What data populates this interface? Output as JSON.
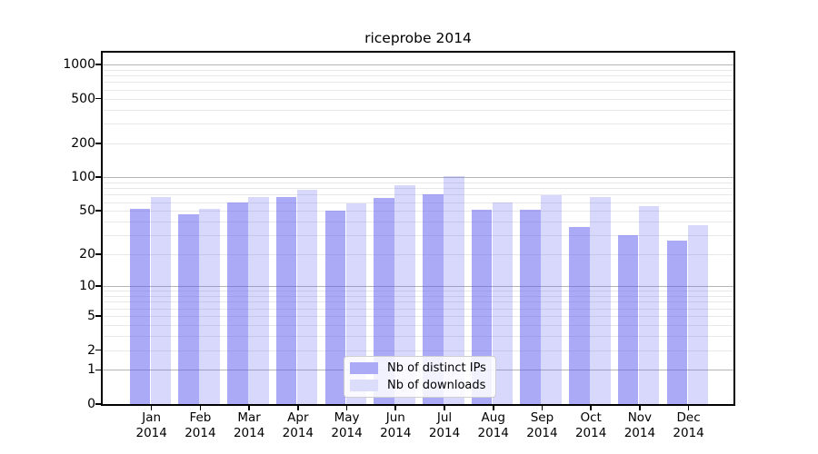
{
  "figure": {
    "title": "riceprobe 2014",
    "background": "#ffffff"
  },
  "chart_data": {
    "type": "bar",
    "title": "riceprobe 2014",
    "categories": [
      "Jan 2014",
      "Feb 2014",
      "Mar 2014",
      "Apr 2014",
      "May 2014",
      "Jun 2014",
      "Jul 2014",
      "Aug 2014",
      "Sep 2014",
      "Oct 2014",
      "Nov 2014",
      "Dec 2014"
    ],
    "series": [
      {
        "name": "Nb of distinct IPs",
        "values": [
          52,
          47,
          60,
          67,
          50,
          65,
          70,
          51,
          51,
          36,
          30,
          27
        ],
        "fill": "rgba(85,85,240,0.5)",
        "legend_color": "#aaaaf7"
      },
      {
        "name": "Nb of downloads",
        "values": [
          66,
          52,
          67,
          77,
          58,
          85,
          103,
          59,
          69,
          66,
          55,
          37
        ],
        "fill": "rgba(85,85,240,0.23)",
        "legend_color": "#dcdcfb"
      }
    ],
    "xlabel": "",
    "ylabel": "",
    "yscale": "symlog (log10 of value+1, linear near 0)",
    "y_ticks": [
      0,
      1,
      2,
      5,
      10,
      20,
      50,
      100,
      200,
      500,
      1000
    ],
    "y_major_gridlines": [
      1,
      10,
      100,
      1000
    ],
    "ylim": [
      0,
      1276
    ],
    "grid": true,
    "legend_position": "lower center"
  },
  "style": {
    "major_grid": "#b5b5b5",
    "minor_grid": "#e8e8e8",
    "spine": "#000000",
    "text": "#000000"
  }
}
